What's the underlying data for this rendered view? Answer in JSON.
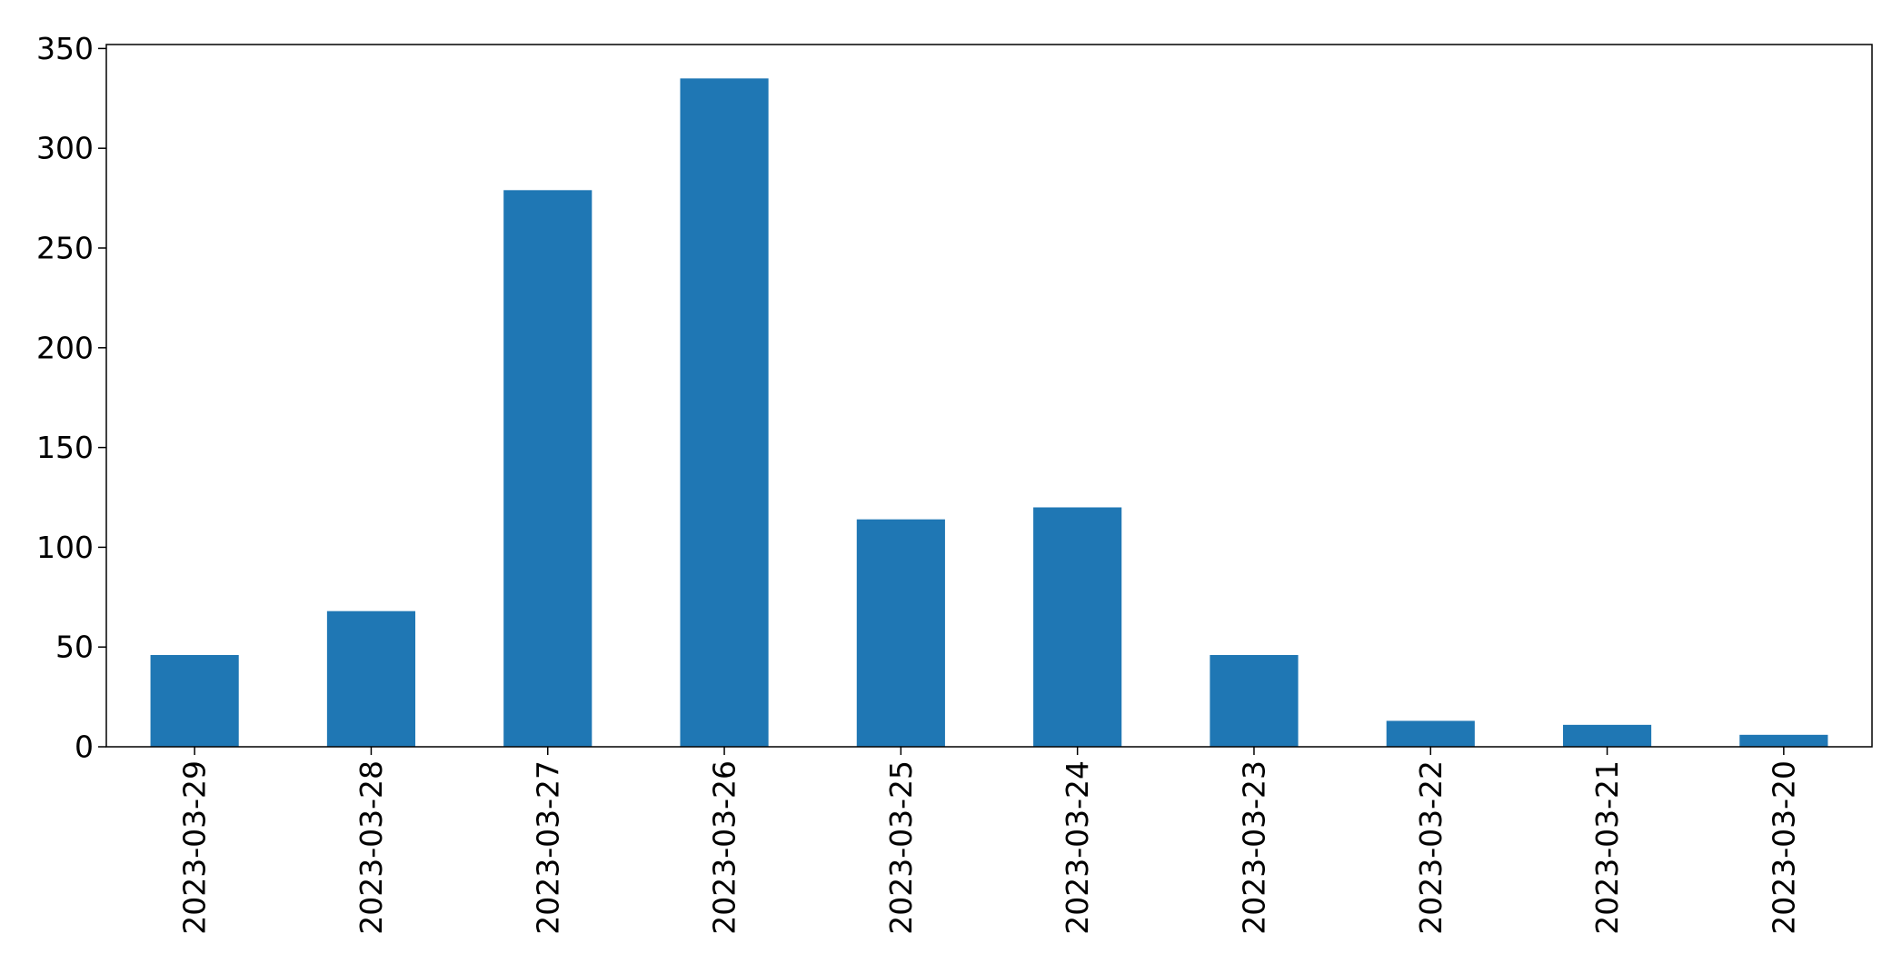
{
  "chart_data": {
    "type": "bar",
    "title": "",
    "xlabel": "",
    "ylabel": "",
    "categories": [
      "2023-03-29",
      "2023-03-28",
      "2023-03-27",
      "2023-03-26",
      "2023-03-25",
      "2023-03-24",
      "2023-03-23",
      "2023-03-22",
      "2023-03-21",
      "2023-03-20"
    ],
    "values": [
      46,
      68,
      279,
      335,
      114,
      120,
      46,
      13,
      11,
      6
    ],
    "ylim": [
      0,
      352
    ],
    "yticks": [
      0,
      50,
      100,
      150,
      200,
      250,
      300,
      350
    ],
    "grid": false,
    "legend": "none",
    "bar_color": "#1f77b4"
  }
}
